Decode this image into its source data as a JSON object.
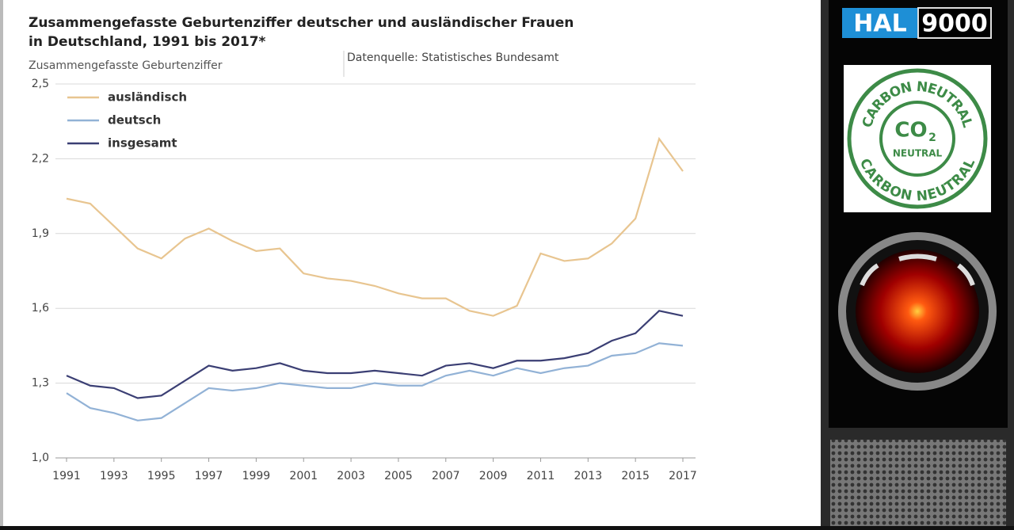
{
  "chart_data": {
    "type": "line",
    "title": [
      "Zusammengefasste Geburtenziffer deutscher und ausländischer Frauen",
      "in Deutschland, 1991 bis 2017*"
    ],
    "ylabel": "Zusammengefasste Geburtenziffer",
    "source": "Datenquelle: Statistisches Bundesamt",
    "x": [
      1991,
      1992,
      1993,
      1994,
      1995,
      1996,
      1997,
      1998,
      1999,
      2000,
      2001,
      2002,
      2003,
      2004,
      2005,
      2006,
      2007,
      2008,
      2009,
      2010,
      2011,
      2012,
      2013,
      2014,
      2015,
      2016,
      2017
    ],
    "xlim": [
      1991,
      2017
    ],
    "xticks": [
      1991,
      1993,
      1995,
      1997,
      1999,
      2001,
      2003,
      2005,
      2007,
      2009,
      2011,
      2013,
      2015,
      2017
    ],
    "ylim": [
      1.0,
      2.5
    ],
    "yticks": [
      {
        "value": 1.0,
        "label": "1,0"
      },
      {
        "value": 1.3,
        "label": "1,3"
      },
      {
        "value": 1.6,
        "label": "1,6"
      },
      {
        "value": 1.9,
        "label": "1,9"
      },
      {
        "value": 2.2,
        "label": "2,2"
      },
      {
        "value": 2.5,
        "label": "2,5"
      }
    ],
    "grid": true,
    "legend": "upper left",
    "series": [
      {
        "name": "ausländisch",
        "color": "#e8c590",
        "values": [
          2.04,
          2.02,
          1.93,
          1.84,
          1.8,
          1.88,
          1.92,
          1.87,
          1.83,
          1.84,
          1.74,
          1.72,
          1.71,
          1.69,
          1.66,
          1.64,
          1.64,
          1.59,
          1.57,
          1.61,
          1.82,
          1.79,
          1.8,
          1.86,
          1.96,
          2.28,
          2.15
        ]
      },
      {
        "name": "deutsch",
        "color": "#92b2d6",
        "values": [
          1.26,
          1.2,
          1.18,
          1.15,
          1.16,
          1.22,
          1.28,
          1.27,
          1.28,
          1.3,
          1.29,
          1.28,
          1.28,
          1.3,
          1.29,
          1.29,
          1.33,
          1.35,
          1.33,
          1.36,
          1.34,
          1.36,
          1.37,
          1.41,
          1.42,
          1.46,
          1.45
        ]
      },
      {
        "name": "insgesamt",
        "color": "#3b3f74",
        "values": [
          1.33,
          1.29,
          1.28,
          1.24,
          1.25,
          1.31,
          1.37,
          1.35,
          1.36,
          1.38,
          1.35,
          1.34,
          1.34,
          1.35,
          1.34,
          1.33,
          1.37,
          1.38,
          1.36,
          1.39,
          1.39,
          1.4,
          1.42,
          1.47,
          1.5,
          1.59,
          1.57
        ]
      }
    ]
  },
  "panel": {
    "logo": [
      "HAL",
      "9000"
    ],
    "badge": {
      "ring_top": "CARBON NEUTRAL",
      "ring_bottom": "CARBON NEUTRAL",
      "center": "CO",
      "subscript": "2",
      "center_label": "NEUTRAL"
    }
  }
}
